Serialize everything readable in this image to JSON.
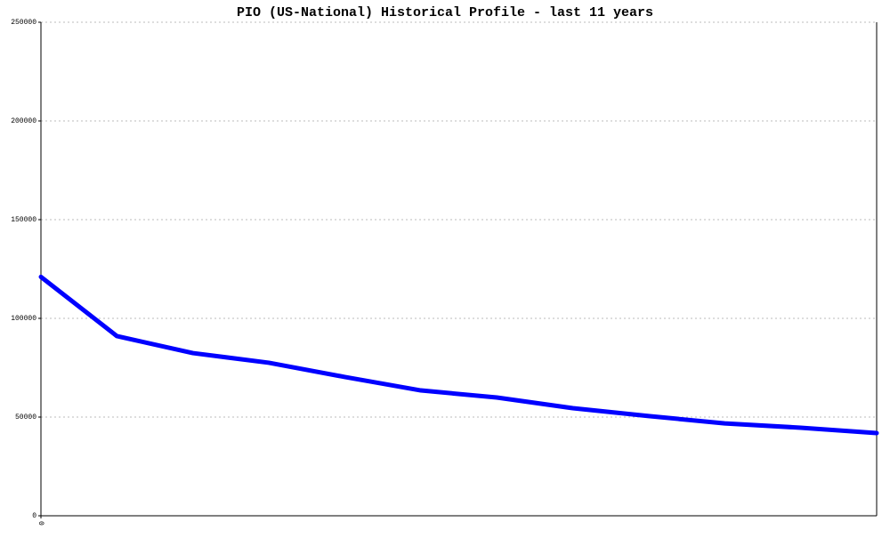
{
  "chart_data": {
    "type": "line",
    "title": "PIO (US-National) Historical Profile - last 11 years",
    "categories": [
      "0",
      null,
      null,
      null,
      null,
      null,
      null,
      null,
      null,
      null,
      null,
      null
    ],
    "series": [
      {
        "name": "PIO",
        "color": "#0000ff",
        "values": [
          121000,
          91000,
          82400,
          77500,
          70300,
          63500,
          59900,
          54500,
          50500,
          46800,
          44600,
          41900
        ]
      }
    ],
    "ylim": [
      0,
      250000
    ],
    "yticks": [
      0,
      50000,
      100000,
      150000,
      200000,
      250000
    ],
    "grid": true
  }
}
